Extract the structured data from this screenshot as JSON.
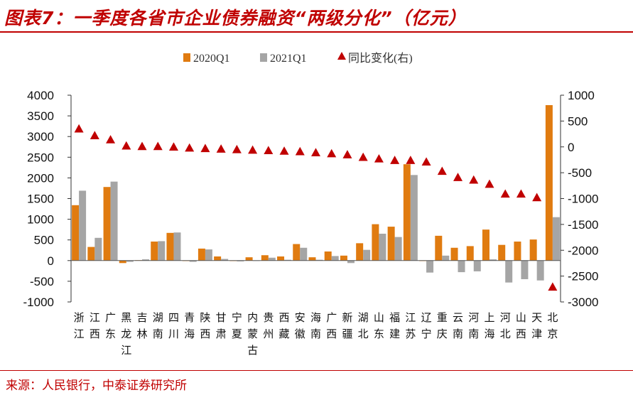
{
  "header": {
    "title": "图表7：一季度各省市企业债券融资“两级分化”（亿元）"
  },
  "footer": {
    "source": "来源：人民银行，中泰证券研究所"
  },
  "chart_data": {
    "type": "bar",
    "title": "图表7：一季度各省市企业债券融资“两级分化”（亿元）",
    "categories": [
      "浙江",
      "江西",
      "广东",
      "黑龙江",
      "吉林",
      "湖南",
      "四川",
      "青海",
      "陕西",
      "甘肃",
      "宁夏",
      "内蒙古",
      "贵州",
      "西藏",
      "安徽",
      "海南",
      "广西",
      "新疆",
      "湖北",
      "山东",
      "福建",
      "江苏",
      "辽宁",
      "重庆",
      "云南",
      "河南",
      "上海",
      "河北",
      "山西",
      "天津",
      "北京"
    ],
    "series": [
      {
        "name": "2020Q1",
        "kind": "bar",
        "axis": "left",
        "color": "#e07b10",
        "values": [
          1340,
          330,
          1780,
          -60,
          10,
          460,
          670,
          0,
          290,
          100,
          0,
          80,
          130,
          100,
          400,
          80,
          220,
          120,
          420,
          880,
          820,
          2330,
          0,
          600,
          310,
          350,
          750,
          380,
          460,
          510,
          3760
        ]
      },
      {
        "name": "2021Q1",
        "kind": "bar",
        "axis": "left",
        "color": "#a5a5a5",
        "values": [
          1690,
          550,
          1910,
          -30,
          30,
          470,
          680,
          -30,
          270,
          40,
          -20,
          0,
          70,
          20,
          310,
          20,
          110,
          -60,
          260,
          650,
          570,
          2070,
          -290,
          120,
          -280,
          -260,
          30,
          -530,
          -450,
          -480,
          1050
        ]
      },
      {
        "name": "同比变化(右)",
        "kind": "marker",
        "axis": "right",
        "color": "#c00000",
        "values": [
          350,
          220,
          140,
          20,
          10,
          10,
          0,
          -20,
          -30,
          -40,
          -50,
          -60,
          -70,
          -80,
          -90,
          -110,
          -130,
          -150,
          -200,
          -230,
          -260,
          -260,
          -290,
          -470,
          -590,
          -640,
          -720,
          -910,
          -910,
          -980,
          -2710
        ]
      }
    ],
    "ylim_left": [
      -1000,
      4000
    ],
    "yticks_left": [
      -1000,
      -500,
      0,
      500,
      1000,
      1500,
      2000,
      2500,
      3000,
      3500,
      4000
    ],
    "ylim_right": [
      -3000,
      1000
    ],
    "yticks_right": [
      -3000,
      -2500,
      -2000,
      -1500,
      -1000,
      -500,
      0,
      500,
      1000
    ],
    "legend_position": "top-center",
    "grid": false
  }
}
